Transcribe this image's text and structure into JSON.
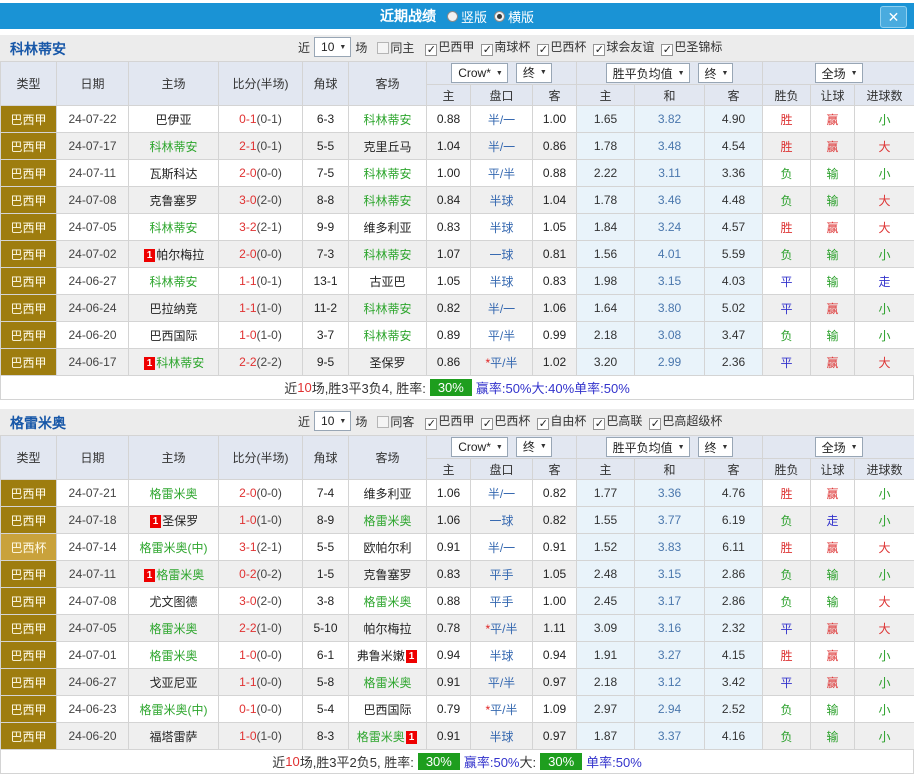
{
  "titlebar": {
    "title": "近期战绩",
    "close_glyph": "✕",
    "layout_options": [
      {
        "label": "竖版",
        "selected": false
      },
      {
        "label": "横版",
        "selected": true
      }
    ]
  },
  "colors": {
    "title_bg": "#1a93d5",
    "close_bg": "#49abdf",
    "section_bg": "#ececec",
    "team_name_blue": "#1757a8",
    "header_bg": "#e2e7f1",
    "gold_dark": "#9e7d0f",
    "gold_light": "#c9a23b",
    "team_green": "#2ea62e",
    "score_red": "#e03131",
    "handicap_blue": "#3568b0",
    "avg_draw_blue": "#4a77ad",
    "avg_cell_bg": "#e9f3fa",
    "row_alt_bg": "#efefef",
    "result_red": "#dd3333",
    "result_green": "#2ba02b",
    "result_blue": "#3333cc",
    "summary_badge_green": "#1e9e1e",
    "card_badge_red": "#ee0000"
  },
  "table_header": {
    "left_columns": [
      "类型",
      "日期",
      "主场",
      "比分(半场)",
      "角球",
      "客场"
    ],
    "groups": [
      {
        "selects": [
          "Crow*",
          "终"
        ],
        "sub": [
          "主",
          "盘口",
          "客"
        ]
      },
      {
        "selects": [
          "胜平负均值",
          "终"
        ],
        "sub": [
          "主",
          "和",
          "客"
        ]
      },
      {
        "selects": [
          "全场"
        ],
        "sub": [
          "胜负",
          "让球",
          "进球数"
        ]
      }
    ]
  },
  "sections": [
    {
      "team": "科林蒂安",
      "filter": {
        "prefix": "近",
        "count": "10",
        "suffix": "场",
        "same_side": {
          "label": "同主",
          "checked": false
        },
        "leagues": [
          {
            "label": "巴西甲",
            "checked": true
          },
          {
            "label": "南球杯",
            "checked": true
          },
          {
            "label": "巴西杯",
            "checked": true
          },
          {
            "label": "球会友谊",
            "checked": true
          },
          {
            "label": "巴圣锦标",
            "checked": true
          }
        ]
      },
      "rows": [
        {
          "league": "巴西甲",
          "league_style": "dark",
          "date": "24-07-22",
          "home": "巴伊亚",
          "home_green": false,
          "home_badge": false,
          "score": "0-1",
          "half": "(0-1)",
          "corners": "6-3",
          "away": "科林蒂安",
          "away_green": true,
          "away_badge": false,
          "odds_home": "0.88",
          "handicap": "半/一",
          "handicap_star": false,
          "odds_away": "1.00",
          "avg_home": "1.65",
          "avg_draw": "3.82",
          "avg_away": "4.90",
          "result": "胜",
          "result_color": "red",
          "handicap_result": "赢",
          "handicap_result_color": "red",
          "goals": "小",
          "goals_color": "green"
        },
        {
          "league": "巴西甲",
          "league_style": "dark",
          "date": "24-07-17",
          "home": "科林蒂安",
          "home_green": true,
          "home_badge": false,
          "score": "2-1",
          "half": "(0-1)",
          "corners": "5-5",
          "away": "克里丘马",
          "away_green": false,
          "away_badge": false,
          "odds_home": "1.04",
          "handicap": "半/一",
          "handicap_star": false,
          "odds_away": "0.86",
          "avg_home": "1.78",
          "avg_draw": "3.48",
          "avg_away": "4.54",
          "result": "胜",
          "result_color": "red",
          "handicap_result": "赢",
          "handicap_result_color": "red",
          "goals": "大",
          "goals_color": "red"
        },
        {
          "league": "巴西甲",
          "league_style": "dark",
          "date": "24-07-11",
          "home": "瓦斯科达",
          "home_green": false,
          "home_badge": false,
          "score": "2-0",
          "half": "(0-0)",
          "corners": "7-5",
          "away": "科林蒂安",
          "away_green": true,
          "away_badge": false,
          "odds_home": "1.00",
          "handicap": "平/半",
          "handicap_star": false,
          "odds_away": "0.88",
          "avg_home": "2.22",
          "avg_draw": "3.11",
          "avg_away": "3.36",
          "result": "负",
          "result_color": "green",
          "handicap_result": "输",
          "handicap_result_color": "green",
          "goals": "小",
          "goals_color": "green"
        },
        {
          "league": "巴西甲",
          "league_style": "dark",
          "date": "24-07-08",
          "home": "克鲁塞罗",
          "home_green": false,
          "home_badge": false,
          "score": "3-0",
          "half": "(2-0)",
          "corners": "8-8",
          "away": "科林蒂安",
          "away_green": true,
          "away_badge": false,
          "odds_home": "0.84",
          "handicap": "半球",
          "handicap_star": false,
          "odds_away": "1.04",
          "avg_home": "1.78",
          "avg_draw": "3.46",
          "avg_away": "4.48",
          "result": "负",
          "result_color": "green",
          "handicap_result": "输",
          "handicap_result_color": "green",
          "goals": "大",
          "goals_color": "red"
        },
        {
          "league": "巴西甲",
          "league_style": "dark",
          "date": "24-07-05",
          "home": "科林蒂安",
          "home_green": true,
          "home_badge": false,
          "score": "3-2",
          "half": "(2-1)",
          "corners": "9-9",
          "away": "维多利亚",
          "away_green": false,
          "away_badge": false,
          "odds_home": "0.83",
          "handicap": "半球",
          "handicap_star": false,
          "odds_away": "1.05",
          "avg_home": "1.84",
          "avg_draw": "3.24",
          "avg_away": "4.57",
          "result": "胜",
          "result_color": "red",
          "handicap_result": "赢",
          "handicap_result_color": "red",
          "goals": "大",
          "goals_color": "red"
        },
        {
          "league": "巴西甲",
          "league_style": "dark",
          "date": "24-07-02",
          "home": "帕尔梅拉",
          "home_green": false,
          "home_badge": true,
          "score": "2-0",
          "half": "(0-0)",
          "corners": "7-3",
          "away": "科林蒂安",
          "away_green": true,
          "away_badge": false,
          "odds_home": "1.07",
          "handicap": "一球",
          "handicap_star": false,
          "odds_away": "0.81",
          "avg_home": "1.56",
          "avg_draw": "4.01",
          "avg_away": "5.59",
          "result": "负",
          "result_color": "green",
          "handicap_result": "输",
          "handicap_result_color": "green",
          "goals": "小",
          "goals_color": "green"
        },
        {
          "league": "巴西甲",
          "league_style": "dark",
          "date": "24-06-27",
          "home": "科林蒂安",
          "home_green": true,
          "home_badge": false,
          "score": "1-1",
          "half": "(0-1)",
          "corners": "13-1",
          "away": "古亚巴",
          "away_green": false,
          "away_badge": false,
          "odds_home": "1.05",
          "handicap": "半球",
          "handicap_star": false,
          "odds_away": "0.83",
          "avg_home": "1.98",
          "avg_draw": "3.15",
          "avg_away": "4.03",
          "result": "平",
          "result_color": "blue",
          "handicap_result": "输",
          "handicap_result_color": "green",
          "goals": "走",
          "goals_color": "blue"
        },
        {
          "league": "巴西甲",
          "league_style": "dark",
          "date": "24-06-24",
          "home": "巴拉纳竞",
          "home_green": false,
          "home_badge": false,
          "score": "1-1",
          "half": "(1-0)",
          "corners": "11-2",
          "away": "科林蒂安",
          "away_green": true,
          "away_badge": false,
          "odds_home": "0.82",
          "handicap": "半/一",
          "handicap_star": false,
          "odds_away": "1.06",
          "avg_home": "1.64",
          "avg_draw": "3.80",
          "avg_away": "5.02",
          "result": "平",
          "result_color": "blue",
          "handicap_result": "赢",
          "handicap_result_color": "red",
          "goals": "小",
          "goals_color": "green"
        },
        {
          "league": "巴西甲",
          "league_style": "dark",
          "date": "24-06-20",
          "home": "巴西国际",
          "home_green": false,
          "home_badge": false,
          "score": "1-0",
          "half": "(1-0)",
          "corners": "3-7",
          "away": "科林蒂安",
          "away_green": true,
          "away_badge": false,
          "odds_home": "0.89",
          "handicap": "平/半",
          "handicap_star": false,
          "odds_away": "0.99",
          "avg_home": "2.18",
          "avg_draw": "3.08",
          "avg_away": "3.47",
          "result": "负",
          "result_color": "green",
          "handicap_result": "输",
          "handicap_result_color": "green",
          "goals": "小",
          "goals_color": "green"
        },
        {
          "league": "巴西甲",
          "league_style": "dark",
          "date": "24-06-17",
          "home": "科林蒂安",
          "home_green": true,
          "home_badge": true,
          "score": "2-2",
          "half": "(2-2)",
          "corners": "9-5",
          "away": "圣保罗",
          "away_green": false,
          "away_badge": false,
          "odds_home": "0.86",
          "handicap": "平/半",
          "handicap_star": true,
          "odds_away": "1.02",
          "avg_home": "3.20",
          "avg_draw": "2.99",
          "avg_away": "2.36",
          "result": "平",
          "result_color": "blue",
          "handicap_result": "赢",
          "handicap_result_color": "red",
          "goals": "大",
          "goals_color": "red"
        }
      ],
      "summary": {
        "segments": [
          {
            "text": "近",
            "style": "plain"
          },
          {
            "text": "10",
            "style": "red"
          },
          {
            "text": "场,胜3平3负4, 胜率: ",
            "style": "plain"
          },
          {
            "text": "30%",
            "style": "badge"
          },
          {
            "text": " 赢率:50%",
            "style": "blue"
          },
          {
            "text": " 大:40%",
            "style": "blue"
          },
          {
            "text": " 单率:50%",
            "style": "blue"
          }
        ]
      }
    },
    {
      "team": "格雷米奥",
      "filter": {
        "prefix": "近",
        "count": "10",
        "suffix": "场",
        "same_side": {
          "label": "同客",
          "checked": false
        },
        "leagues": [
          {
            "label": "巴西甲",
            "checked": true
          },
          {
            "label": "巴西杯",
            "checked": true
          },
          {
            "label": "自由杯",
            "checked": true
          },
          {
            "label": "巴高联",
            "checked": true
          },
          {
            "label": "巴高超级杯",
            "checked": true
          }
        ]
      },
      "rows": [
        {
          "league": "巴西甲",
          "league_style": "dark",
          "date": "24-07-21",
          "home": "格雷米奥",
          "home_green": true,
          "home_badge": false,
          "score": "2-0",
          "half": "(0-0)",
          "corners": "7-4",
          "away": "维多利亚",
          "away_green": false,
          "away_badge": false,
          "odds_home": "1.06",
          "handicap": "半/一",
          "handicap_star": false,
          "odds_away": "0.82",
          "avg_home": "1.77",
          "avg_draw": "3.36",
          "avg_away": "4.76",
          "result": "胜",
          "result_color": "red",
          "handicap_result": "赢",
          "handicap_result_color": "red",
          "goals": "小",
          "goals_color": "green"
        },
        {
          "league": "巴西甲",
          "league_style": "dark",
          "date": "24-07-18",
          "home": "圣保罗",
          "home_green": false,
          "home_badge": true,
          "score": "1-0",
          "half": "(1-0)",
          "corners": "8-9",
          "away": "格雷米奥",
          "away_green": true,
          "away_badge": false,
          "odds_home": "1.06",
          "handicap": "一球",
          "handicap_star": false,
          "odds_away": "0.82",
          "avg_home": "1.55",
          "avg_draw": "3.77",
          "avg_away": "6.19",
          "result": "负",
          "result_color": "green",
          "handicap_result": "走",
          "handicap_result_color": "blue",
          "goals": "小",
          "goals_color": "green"
        },
        {
          "league": "巴西杯",
          "league_style": "light",
          "date": "24-07-14",
          "home": "格雷米奥(中)",
          "home_green": true,
          "home_badge": false,
          "score": "3-1",
          "half": "(2-1)",
          "corners": "5-5",
          "away": "欧帕尔利",
          "away_green": false,
          "away_badge": false,
          "odds_home": "0.91",
          "handicap": "半/一",
          "handicap_star": false,
          "odds_away": "0.91",
          "avg_home": "1.52",
          "avg_draw": "3.83",
          "avg_away": "6.11",
          "result": "胜",
          "result_color": "red",
          "handicap_result": "赢",
          "handicap_result_color": "red",
          "goals": "大",
          "goals_color": "red"
        },
        {
          "league": "巴西甲",
          "league_style": "dark",
          "date": "24-07-11",
          "home": "格雷米奥",
          "home_green": true,
          "home_badge": true,
          "score": "0-2",
          "half": "(0-2)",
          "corners": "1-5",
          "away": "克鲁塞罗",
          "away_green": false,
          "away_badge": false,
          "odds_home": "0.83",
          "handicap": "平手",
          "handicap_star": false,
          "odds_away": "1.05",
          "avg_home": "2.48",
          "avg_draw": "3.15",
          "avg_away": "2.86",
          "result": "负",
          "result_color": "green",
          "handicap_result": "输",
          "handicap_result_color": "green",
          "goals": "小",
          "goals_color": "green"
        },
        {
          "league": "巴西甲",
          "league_style": "dark",
          "date": "24-07-08",
          "home": "尤文图德",
          "home_green": false,
          "home_badge": false,
          "score": "3-0",
          "half": "(2-0)",
          "corners": "3-8",
          "away": "格雷米奥",
          "away_green": true,
          "away_badge": false,
          "odds_home": "0.88",
          "handicap": "平手",
          "handicap_star": false,
          "odds_away": "1.00",
          "avg_home": "2.45",
          "avg_draw": "3.17",
          "avg_away": "2.86",
          "result": "负",
          "result_color": "green",
          "handicap_result": "输",
          "handicap_result_color": "green",
          "goals": "大",
          "goals_color": "red"
        },
        {
          "league": "巴西甲",
          "league_style": "dark",
          "date": "24-07-05",
          "home": "格雷米奥",
          "home_green": true,
          "home_badge": false,
          "score": "2-2",
          "half": "(1-0)",
          "corners": "5-10",
          "away": "帕尔梅拉",
          "away_green": false,
          "away_badge": false,
          "odds_home": "0.78",
          "handicap": "平/半",
          "handicap_star": true,
          "odds_away": "1.11",
          "avg_home": "3.09",
          "avg_draw": "3.16",
          "avg_away": "2.32",
          "result": "平",
          "result_color": "blue",
          "handicap_result": "赢",
          "handicap_result_color": "red",
          "goals": "大",
          "goals_color": "red"
        },
        {
          "league": "巴西甲",
          "league_style": "dark",
          "date": "24-07-01",
          "home": "格雷米奥",
          "home_green": true,
          "home_badge": false,
          "score": "1-0",
          "half": "(0-0)",
          "corners": "6-1",
          "away": "弗鲁米嫩",
          "away_green": false,
          "away_badge": true,
          "odds_home": "0.94",
          "handicap": "半球",
          "handicap_star": false,
          "odds_away": "0.94",
          "avg_home": "1.91",
          "avg_draw": "3.27",
          "avg_away": "4.15",
          "result": "胜",
          "result_color": "red",
          "handicap_result": "赢",
          "handicap_result_color": "red",
          "goals": "小",
          "goals_color": "green"
        },
        {
          "league": "巴西甲",
          "league_style": "dark",
          "date": "24-06-27",
          "home": "戈亚尼亚",
          "home_green": false,
          "home_badge": false,
          "score": "1-1",
          "half": "(0-0)",
          "corners": "5-8",
          "away": "格雷米奥",
          "away_green": true,
          "away_badge": false,
          "odds_home": "0.91",
          "handicap": "平/半",
          "handicap_star": false,
          "odds_away": "0.97",
          "avg_home": "2.18",
          "avg_draw": "3.12",
          "avg_away": "3.42",
          "result": "平",
          "result_color": "blue",
          "handicap_result": "赢",
          "handicap_result_color": "red",
          "goals": "小",
          "goals_color": "green"
        },
        {
          "league": "巴西甲",
          "league_style": "dark",
          "date": "24-06-23",
          "home": "格雷米奥(中)",
          "home_green": true,
          "home_badge": false,
          "score": "0-1",
          "half": "(0-0)",
          "corners": "5-4",
          "away": "巴西国际",
          "away_green": false,
          "away_badge": false,
          "odds_home": "0.79",
          "handicap": "平/半",
          "handicap_star": true,
          "odds_away": "1.09",
          "avg_home": "2.97",
          "avg_draw": "2.94",
          "avg_away": "2.52",
          "result": "负",
          "result_color": "green",
          "handicap_result": "输",
          "handicap_result_color": "green",
          "goals": "小",
          "goals_color": "green"
        },
        {
          "league": "巴西甲",
          "league_style": "dark",
          "date": "24-06-20",
          "home": "福塔雷萨",
          "home_green": false,
          "home_badge": false,
          "score": "1-0",
          "half": "(1-0)",
          "corners": "8-3",
          "away": "格雷米奥",
          "away_green": true,
          "away_badge": true,
          "odds_home": "0.91",
          "handicap": "半球",
          "handicap_star": false,
          "odds_away": "0.97",
          "avg_home": "1.87",
          "avg_draw": "3.37",
          "avg_away": "4.16",
          "result": "负",
          "result_color": "green",
          "handicap_result": "输",
          "handicap_result_color": "green",
          "goals": "小",
          "goals_color": "green"
        }
      ],
      "summary": {
        "segments": [
          {
            "text": "近",
            "style": "plain"
          },
          {
            "text": "10",
            "style": "red"
          },
          {
            "text": "场,胜3平2负5, 胜率: ",
            "style": "plain"
          },
          {
            "text": "30%",
            "style": "badge"
          },
          {
            "text": " 赢率:50%",
            "style": "blue"
          },
          {
            "text": " 大: ",
            "style": "plain"
          },
          {
            "text": "30%",
            "style": "badge"
          },
          {
            "text": " 单率:50%",
            "style": "blue"
          }
        ]
      }
    }
  ]
}
